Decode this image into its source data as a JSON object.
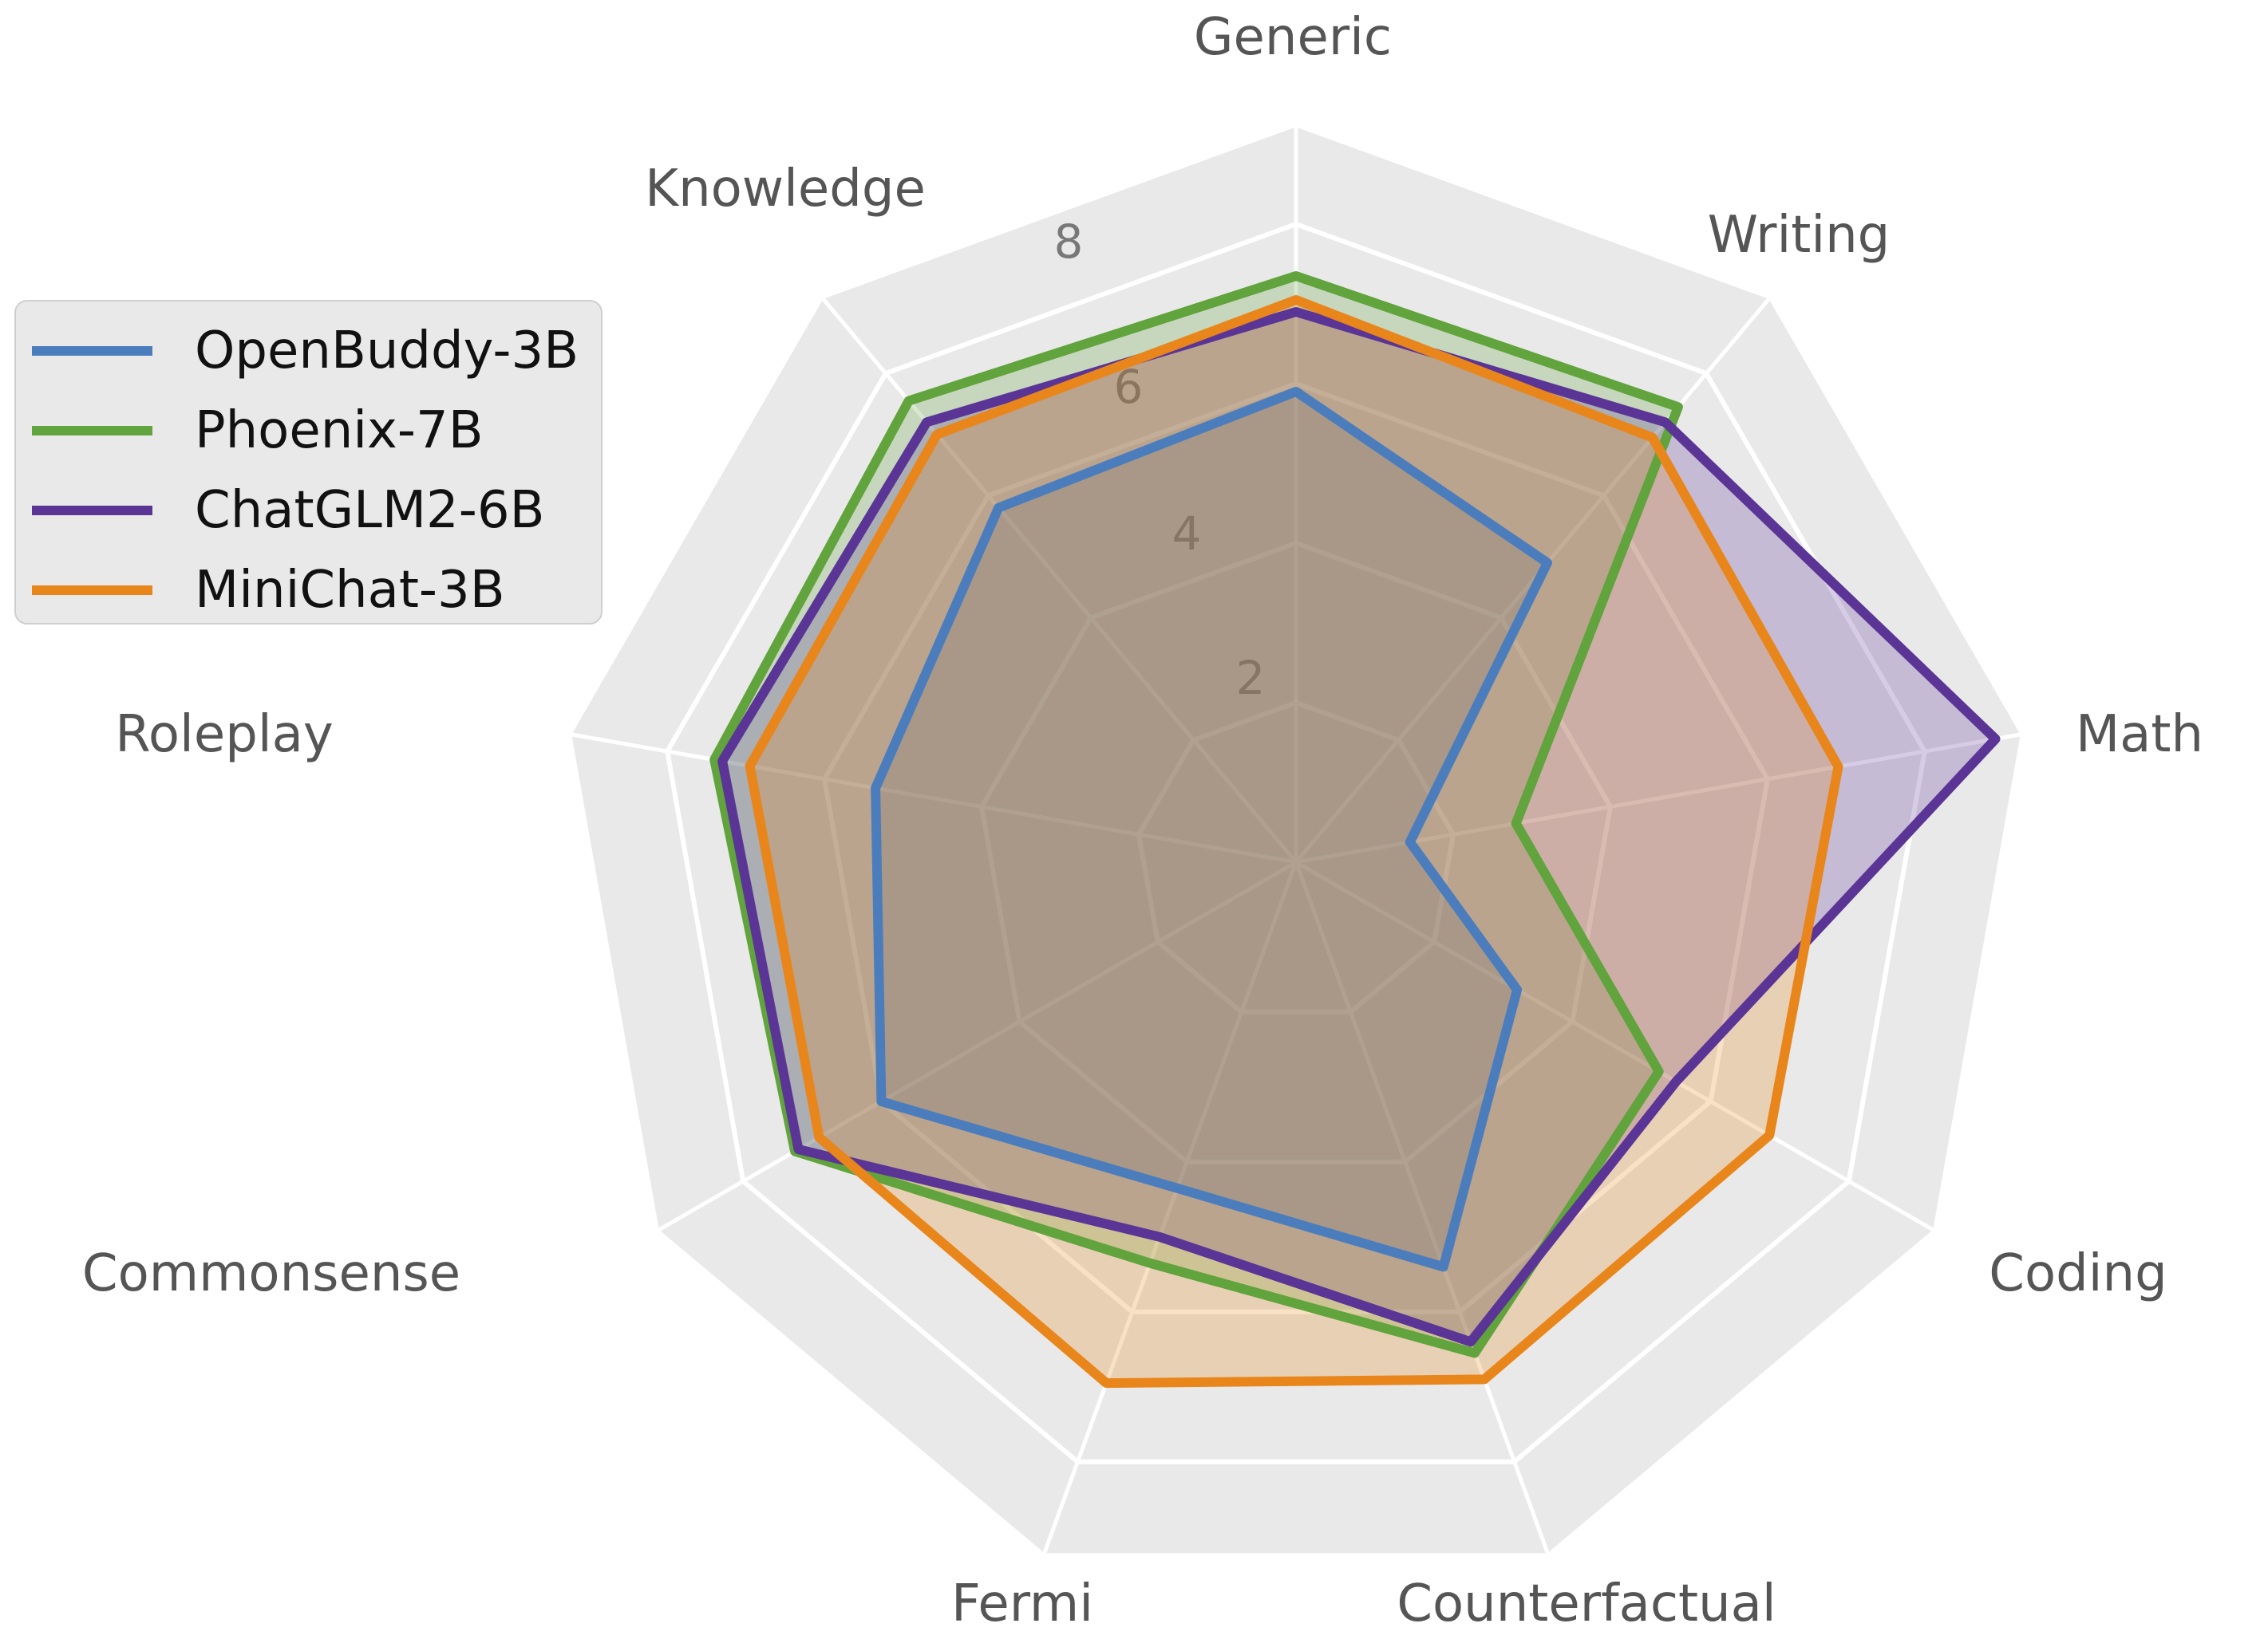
{
  "chart_data": {
    "type": "radar",
    "title": "",
    "categories": [
      "Generic",
      "Writing",
      "Math",
      "Coding",
      "Counterfactual",
      "Fermi",
      "Commonsense",
      "Roleplay",
      "Knowledge"
    ],
    "series": [
      {
        "name": "OpenBuddy-3B",
        "color": "#4b7dbd",
        "values": [
          5.9,
          4.9,
          1.45,
          3.2,
          5.4,
          4.35,
          6.0,
          5.35,
          5.8
        ]
      },
      {
        "name": "Phoenix-7B",
        "color": "#61a33c",
        "values": [
          7.35,
          7.45,
          2.8,
          5.25,
          6.55,
          5.35,
          7.25,
          7.4,
          7.55
        ]
      },
      {
        "name": "ChatGLM2-6B",
        "color": "#5b3596",
        "values": [
          6.9,
          7.2,
          8.9,
          5.5,
          6.4,
          5.0,
          7.2,
          7.3,
          7.2
        ]
      },
      {
        "name": "MiniChat-3B",
        "color": "#e8861c",
        "values": [
          7.05,
          6.95,
          6.9,
          6.85,
          6.9,
          6.95,
          6.9,
          6.95,
          7.0
        ]
      }
    ],
    "radial_ticks": [
      2,
      4,
      6,
      8
    ],
    "rmax": 9.26,
    "grid": "polygonal white gridlines on light-gray plot area",
    "legend_position": "upper-left",
    "fill_opacity": 0.25
  },
  "colors": {
    "page_background": "#ffffff",
    "plot_background": "#e9e9e9",
    "gridline": "#ffffff",
    "tick_label": "#787878",
    "axis_label": "#555555",
    "legend_text": "#111111",
    "legend_background": "#e9e9e9",
    "legend_border": "#cfcfcf"
  }
}
